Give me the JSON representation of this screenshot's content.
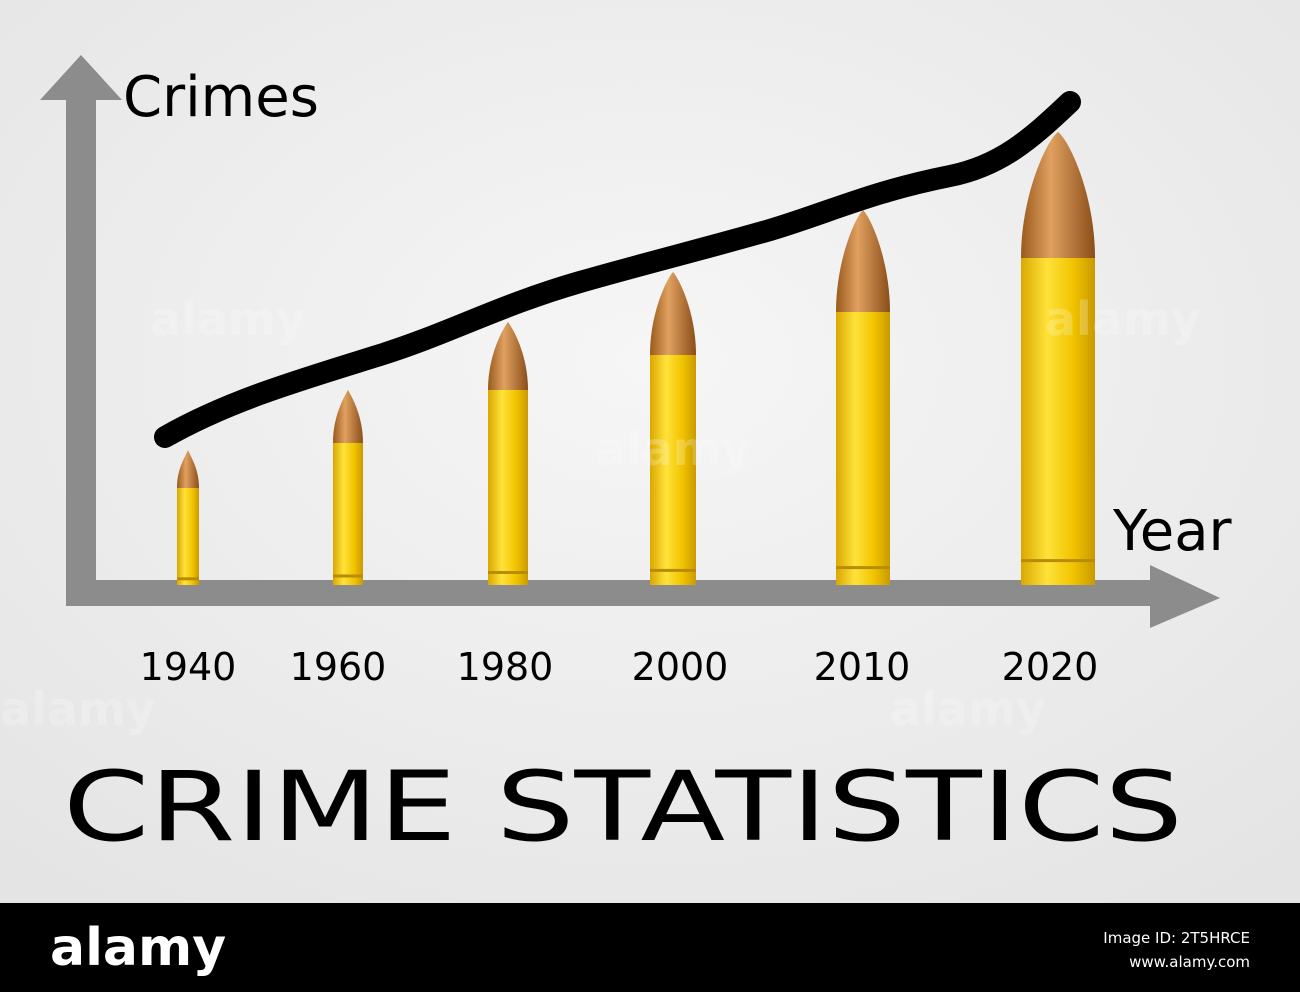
{
  "chart": {
    "y_label": "Crimes",
    "x_label": "Year",
    "categories": [
      "1940",
      "1960",
      "1980",
      "2000",
      "2010",
      "2020"
    ],
    "title": "CRIME STATISTICS"
  },
  "watermark": "alamy",
  "footer": {
    "logo": "alamy",
    "image_id": "Image ID: 2T5HRCE",
    "url": "www.alamy.com"
  }
}
